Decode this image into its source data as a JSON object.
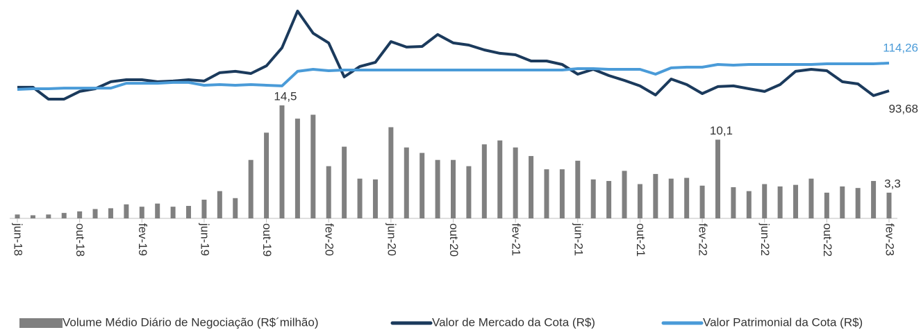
{
  "chart_data": {
    "type": "bar",
    "categories": [
      "jun-18",
      null,
      null,
      null,
      "out-18",
      null,
      null,
      null,
      "fev-19",
      null,
      null,
      null,
      "jun-19",
      null,
      null,
      null,
      "out-19",
      null,
      null,
      null,
      "fev-20",
      null,
      null,
      null,
      "jun-20",
      null,
      null,
      null,
      "out-20",
      null,
      null,
      null,
      "fev-21",
      null,
      null,
      null,
      "jun-21",
      null,
      null,
      null,
      "out-21",
      null,
      null,
      null,
      "fev-22",
      null,
      null,
      null,
      "jun-22",
      null,
      null,
      null,
      "out-22",
      null,
      null,
      null,
      "fev-23"
    ],
    "series": [
      {
        "name": "Volume Médio Diário de Negociação (R$´milhão)",
        "type": "bar",
        "color": "#808080",
        "values": [
          0.5,
          0.4,
          0.5,
          0.7,
          0.9,
          1.2,
          1.3,
          1.8,
          1.5,
          1.9,
          1.5,
          1.6,
          2.4,
          3.5,
          2.6,
          7.5,
          11.0,
          14.5,
          12.8,
          13.3,
          6.7,
          9.2,
          5.1,
          5.0,
          11.7,
          9.1,
          8.4,
          7.5,
          7.5,
          6.7,
          9.5,
          10.0,
          9.1,
          8.0,
          6.3,
          6.3,
          7.4,
          5.0,
          4.8,
          6.1,
          4.4,
          5.7,
          5.1,
          5.2,
          4.2,
          10.1,
          4.0,
          3.5,
          4.4,
          4.1,
          4.3,
          5.1,
          3.3,
          4.1,
          3.9,
          4.8,
          3.3
        ],
        "value_labels": [
          null,
          null,
          null,
          null,
          null,
          null,
          null,
          null,
          null,
          null,
          null,
          null,
          null,
          null,
          null,
          null,
          null,
          "14,5",
          null,
          null,
          null,
          null,
          null,
          null,
          null,
          null,
          null,
          null,
          null,
          null,
          null,
          null,
          null,
          null,
          null,
          null,
          null,
          null,
          null,
          null,
          null,
          null,
          null,
          null,
          null,
          "10,1",
          null,
          null,
          null,
          null,
          null,
          null,
          null,
          null,
          null,
          null,
          "3,3"
        ]
      },
      {
        "name": "Valor de Mercado da Cota (R$)",
        "type": "line",
        "color": "#1b3a5c",
        "values": [
          96.3,
          96.3,
          87.5,
          87.5,
          93.2,
          95.2,
          100.4,
          101.9,
          101.9,
          100.4,
          100.9,
          101.9,
          100.9,
          107.1,
          108.1,
          106.5,
          112.2,
          125.6,
          152.8,
          136.4,
          129.2,
          104.0,
          111.7,
          114.8,
          130.2,
          126.1,
          126.6,
          135.4,
          129.2,
          127.6,
          124.0,
          121.5,
          120.4,
          115.8,
          115.8,
          113.2,
          106.0,
          109.6,
          105.0,
          101.4,
          97.3,
          90.6,
          102.4,
          98.3,
          91.6,
          96.8,
          97.3,
          95.2,
          93.2,
          98.3,
          108.1,
          109.6,
          108.6,
          100.4,
          98.8,
          90.1,
          93.68
        ],
        "value_labels": [
          null,
          null,
          null,
          null,
          null,
          null,
          null,
          null,
          null,
          null,
          null,
          null,
          null,
          null,
          null,
          null,
          null,
          null,
          null,
          null,
          null,
          null,
          null,
          null,
          null,
          null,
          null,
          null,
          null,
          null,
          null,
          null,
          null,
          null,
          null,
          null,
          null,
          null,
          null,
          null,
          null,
          null,
          null,
          null,
          null,
          null,
          null,
          null,
          null,
          null,
          null,
          null,
          null,
          null,
          null,
          null,
          "93,68"
        ]
      },
      {
        "name": "Valor Patrimonial da Cota (R$)",
        "type": "line",
        "color": "#4a9bd8",
        "values": [
          94.7,
          95.2,
          95.2,
          95.7,
          95.7,
          95.7,
          95.7,
          99.3,
          99.3,
          99.3,
          99.9,
          99.9,
          97.8,
          98.3,
          97.8,
          98.3,
          97.8,
          97.3,
          108.1,
          109.6,
          108.6,
          109.1,
          109.1,
          109.1,
          109.1,
          109.1,
          109.1,
          109.1,
          109.1,
          109.1,
          109.1,
          109.1,
          109.1,
          109.1,
          109.1,
          109.1,
          110.1,
          110.1,
          109.6,
          109.6,
          109.6,
          106.0,
          110.7,
          111.2,
          111.2,
          113.2,
          112.7,
          113.2,
          113.2,
          113.2,
          113.2,
          113.2,
          113.7,
          113.7,
          113.7,
          113.7,
          114.26
        ],
        "value_labels": [
          null,
          null,
          null,
          null,
          null,
          null,
          null,
          null,
          null,
          null,
          null,
          null,
          null,
          null,
          null,
          null,
          null,
          null,
          null,
          null,
          null,
          null,
          null,
          null,
          null,
          null,
          null,
          null,
          null,
          null,
          null,
          null,
          null,
          null,
          null,
          null,
          null,
          null,
          null,
          null,
          null,
          null,
          null,
          null,
          null,
          null,
          null,
          null,
          null,
          null,
          null,
          null,
          null,
          null,
          null,
          null,
          "114,26"
        ]
      }
    ]
  }
}
